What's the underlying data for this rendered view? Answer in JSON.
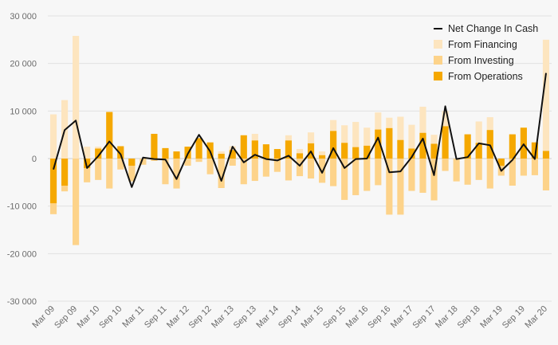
{
  "chart_data": {
    "type": "bar",
    "title": "",
    "xlabel": "",
    "ylabel": "",
    "ylim": [
      -30000,
      30000
    ],
    "y_ticks": [
      30000,
      20000,
      10000,
      0,
      -10000,
      -20000,
      -30000
    ],
    "y_tick_labels": [
      "30 000",
      "20 000",
      "10 000",
      "0",
      "-10 000",
      "-20 000",
      "-30 000"
    ],
    "grid": true,
    "legend_position": "top-right",
    "categories": [
      "Mar 09",
      "Jun 09",
      "Sep 09",
      "Dec 09",
      "Mar 10",
      "Jun 10",
      "Sep 10",
      "Dec 10",
      "Mar 11",
      "Jun 11",
      "Sep 11",
      "Dec 11",
      "Mar 12",
      "Jun 12",
      "Sep 12",
      "Dec 12",
      "Mar 13",
      "Jun 13",
      "Sep 13",
      "Dec 13",
      "Mar 14",
      "Jun 14",
      "Sep 14",
      "Dec 14",
      "Mar 15",
      "Jun 15",
      "Sep 15",
      "Dec 15",
      "Mar 16",
      "Jun 16",
      "Sep 16",
      "Dec 16",
      "Mar 17",
      "Jun 17",
      "Sep 17",
      "Dec 17",
      "Mar 18",
      "Jun 18",
      "Sep 18",
      "Dec 18",
      "Mar 19",
      "Jun 19",
      "Sep 19",
      "Dec 19",
      "Mar 20"
    ],
    "x_tick_labels": [
      "Mar 09",
      "Sep 09",
      "Mar 10",
      "Sep 10",
      "Mar 11",
      "Sep 11",
      "Mar 12",
      "Sep 12",
      "Mar 13",
      "Sep 13",
      "Mar 14",
      "Sep 14",
      "Mar 15",
      "Sep 15",
      "Mar 16",
      "Sep 16",
      "Mar 17",
      "Sep 17",
      "Mar 18",
      "Sep 18",
      "Mar 19",
      "Sep 19",
      "Mar 20"
    ],
    "series": [
      {
        "name": "Net Change In Cash",
        "kind": "line",
        "color": "#111111",
        "values": [
          -2300,
          6000,
          8000,
          -2000,
          500,
          3600,
          900,
          -6000,
          200,
          -100,
          -200,
          -4300,
          1000,
          5000,
          1500,
          -4700,
          2500,
          -800,
          800,
          -100,
          -400,
          600,
          -1500,
          1500,
          -3000,
          2200,
          -2000,
          -100,
          0,
          4400,
          -2900,
          -2700,
          300,
          4200,
          -3500,
          11000,
          -100,
          300,
          3200,
          2800,
          -2600,
          -300,
          3000,
          -100,
          18000
        ]
      },
      {
        "name": "From Financing",
        "kind": "bar",
        "color": "#fde5bf",
        "values": [
          9300,
          12300,
          25800,
          2500,
          2500,
          0,
          1500,
          0,
          0,
          0,
          0,
          0,
          0,
          0,
          2100,
          1500,
          2600,
          2600,
          5200,
          0,
          0,
          4900,
          2000,
          5500,
          1500,
          8100,
          7000,
          7700,
          6500,
          9700,
          8600,
          8800,
          7100,
          10900,
          5000,
          10000,
          0,
          0,
          7800,
          8700,
          0,
          0,
          0,
          3400,
          25000
        ]
      },
      {
        "name": "From Investing",
        "kind": "bar",
        "color": "#fdd38a",
        "values": [
          -11700,
          -6900,
          -18200,
          -5000,
          -4500,
          -6300,
          -2300,
          -4800,
          -1300,
          -500,
          -5400,
          -6300,
          -1500,
          -700,
          -3300,
          -6200,
          -1500,
          -5400,
          -4700,
          -3800,
          -2800,
          -4600,
          -3700,
          -4200,
          -5100,
          -5800,
          -8700,
          -7700,
          -6800,
          -5600,
          -11800,
          -11800,
          -6800,
          -7200,
          -8800,
          -2600,
          -4800,
          -5500,
          -4500,
          -6300,
          -3600,
          -5700,
          -3600,
          -3500,
          -6700
        ]
      },
      {
        "name": "From Operations",
        "kind": "bar",
        "color": "#f5a800",
        "values": [
          -9400,
          -5700,
          0,
          -2000,
          2100,
          9800,
          2600,
          -1500,
          0,
          5200,
          2200,
          1500,
          2500,
          4300,
          3400,
          1000,
          1800,
          4900,
          3800,
          3000,
          2000,
          3800,
          1100,
          3200,
          700,
          5800,
          3300,
          2400,
          2700,
          6100,
          6400,
          3900,
          2100,
          5400,
          3100,
          6800,
          0,
          5100,
          3300,
          6000,
          -1500,
          5100,
          6500,
          3400,
          1600
        ]
      }
    ]
  }
}
